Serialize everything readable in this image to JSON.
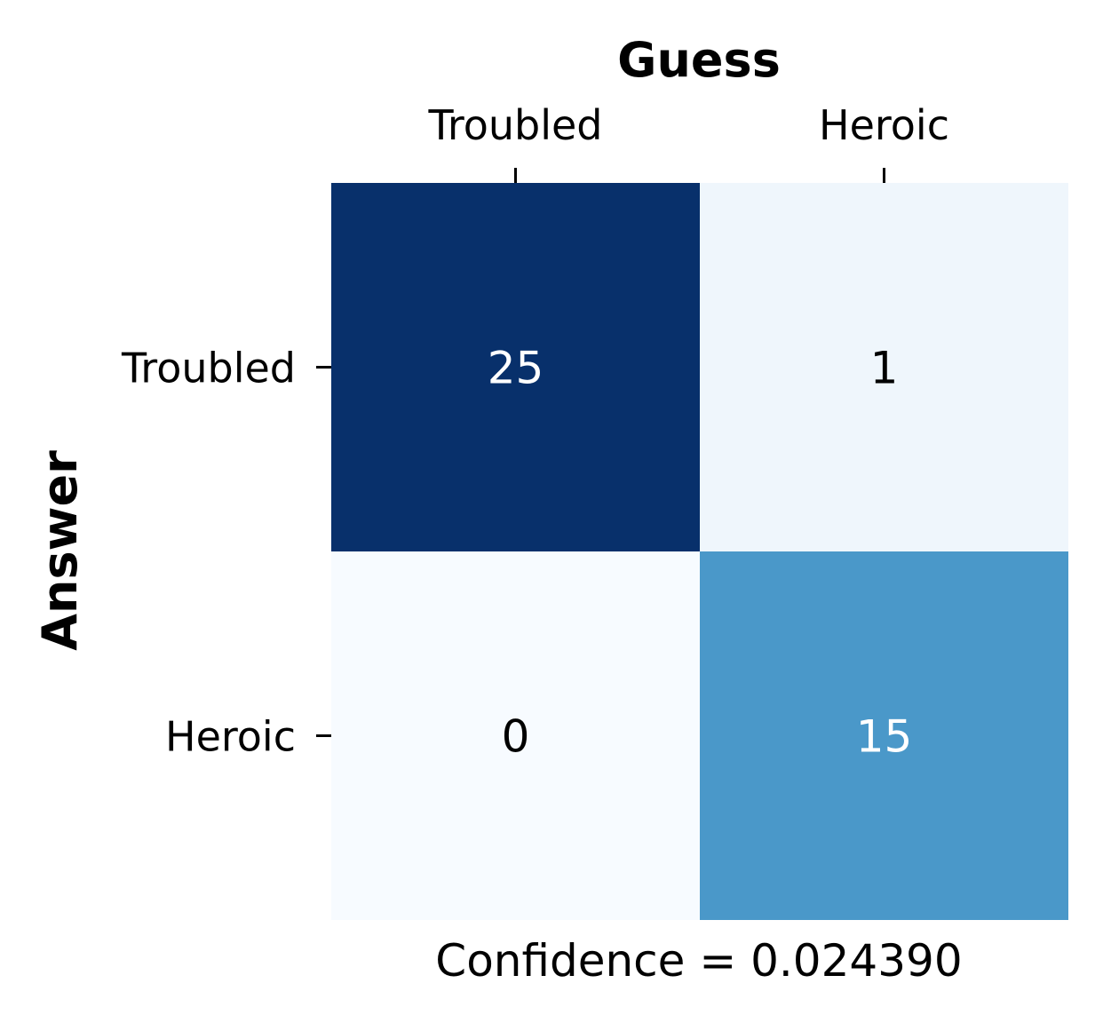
{
  "chart_data": {
    "type": "heatmap",
    "title": "",
    "xlabel": "Guess",
    "ylabel": "Answer",
    "x_categories": [
      "Troubled",
      "Heroic"
    ],
    "y_categories": [
      "Troubled",
      "Heroic"
    ],
    "values": [
      [
        25,
        1
      ],
      [
        0,
        15
      ]
    ],
    "value_range": [
      0,
      25
    ],
    "colormap": "Blues",
    "colorbar": false,
    "grid": false,
    "x_ticks_position": "top",
    "footer": "Confidence = 0.024390"
  },
  "colors": {
    "low": "#f7fbff",
    "high": "#08306b",
    "text_dark": "#000000",
    "text_light": "#ffffff"
  }
}
